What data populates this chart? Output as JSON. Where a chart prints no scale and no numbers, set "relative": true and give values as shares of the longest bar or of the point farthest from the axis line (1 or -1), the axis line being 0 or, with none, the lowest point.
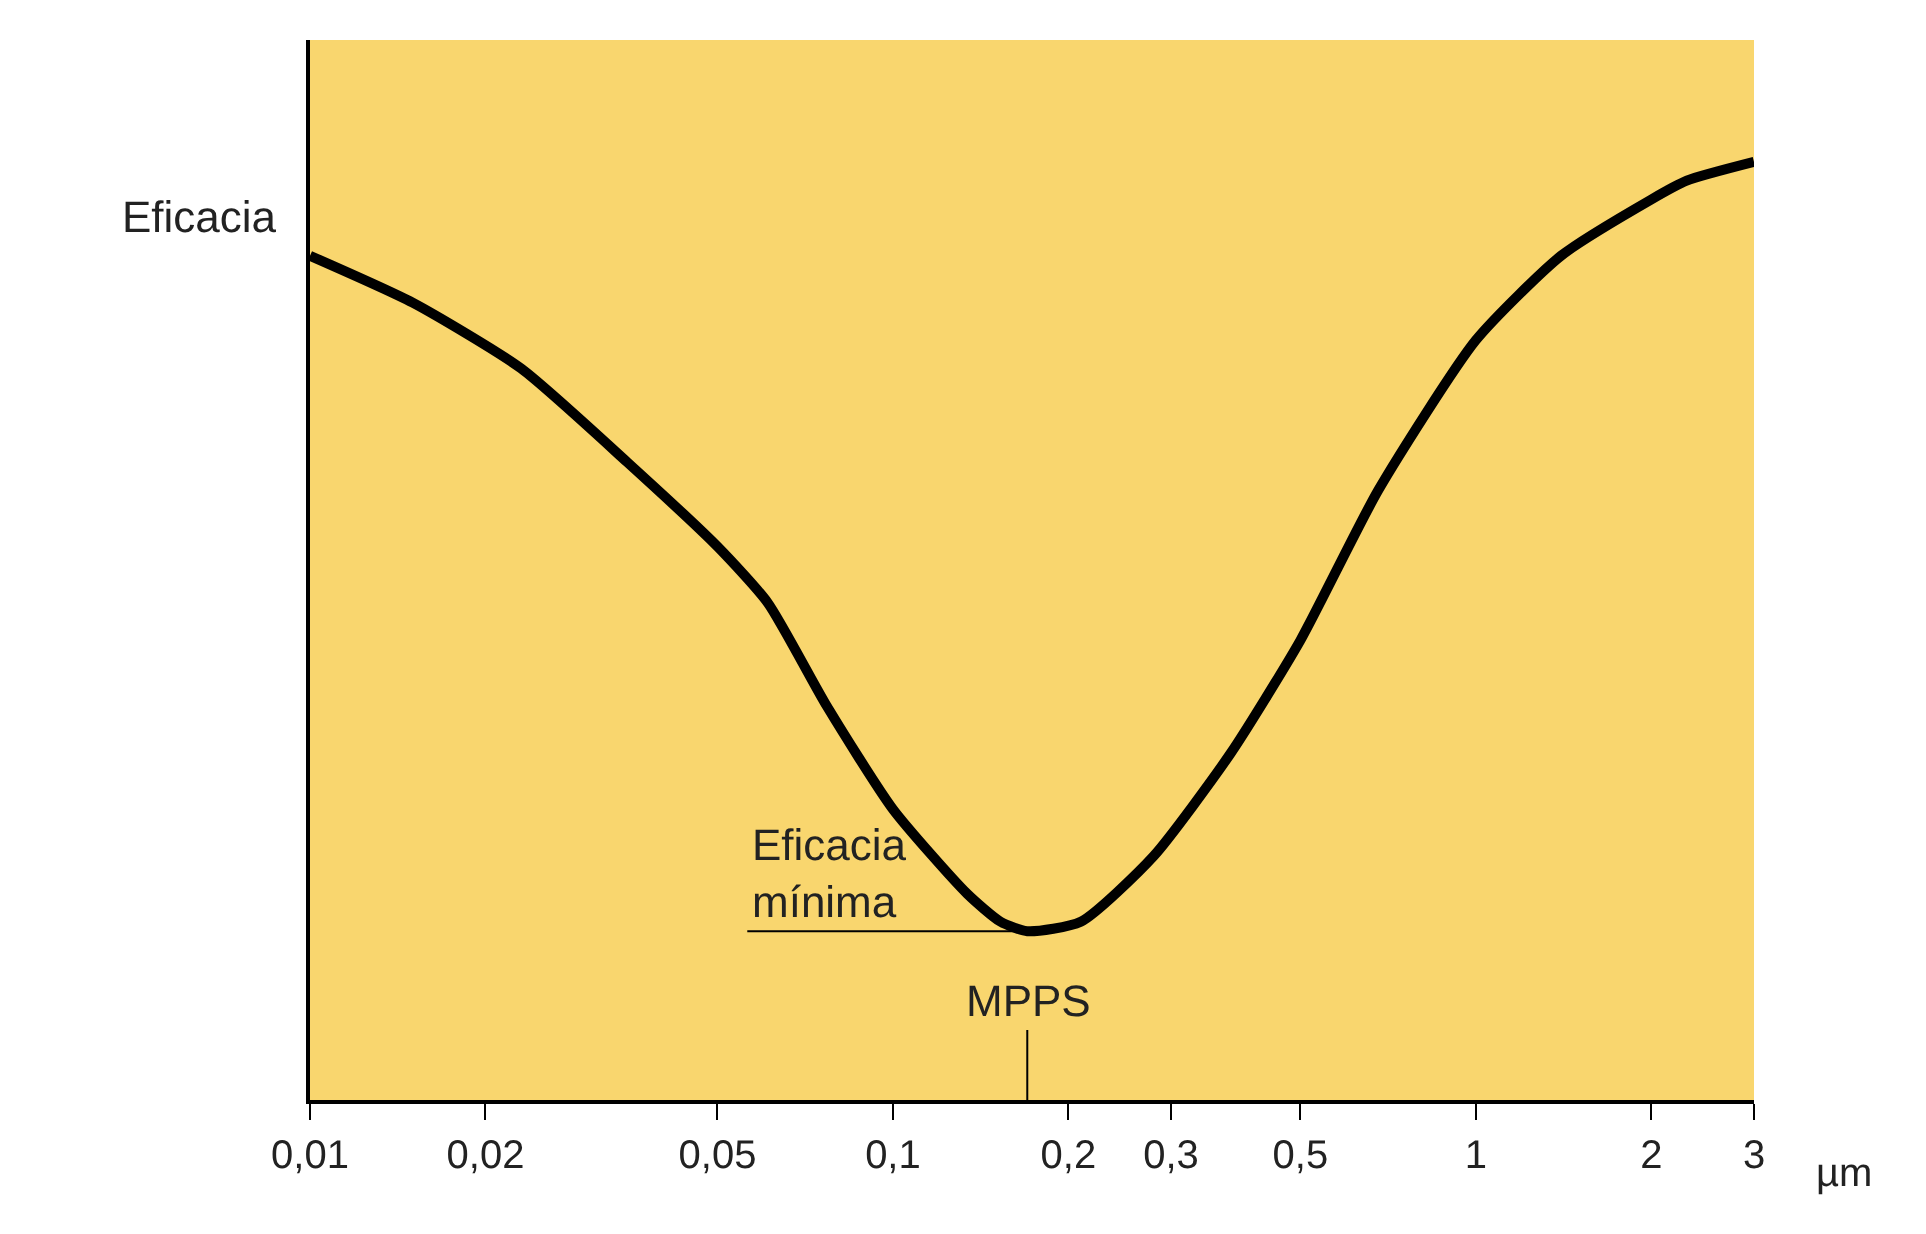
{
  "chart_data": {
    "type": "line",
    "relative": true,
    "log": "x",
    "ylabel": "Eficacia",
    "xlabel": "µm",
    "x": [
      0.01,
      0.015,
      0.023,
      0.035,
      0.05,
      0.061,
      0.077,
      0.1,
      0.134,
      0.153,
      0.17,
      0.21,
      0.28,
      0.38,
      0.5,
      0.68,
      1,
      1.4,
      2,
      2.3,
      3
    ],
    "series": [
      {
        "color": "#000000",
        "values": [
          0.9,
          0.85,
          0.78,
          0.68,
          0.59,
          0.53,
          0.42,
          0.31,
          0.22,
          0.19,
          0.18,
          0.19,
          0.26,
          0.37,
          0.49,
          0.65,
          0.81,
          0.9,
          0.96,
          0.98,
          1.0
        ]
      }
    ],
    "xlim": [
      0.01,
      3
    ],
    "xticks": [
      {
        "value": 0.01,
        "label": "0,01"
      },
      {
        "value": 0.02,
        "label": "0,02"
      },
      {
        "value": 0.05,
        "label": "0,05"
      },
      {
        "value": 0.1,
        "label": "0,1"
      },
      {
        "value": 0.2,
        "label": "0,2"
      },
      {
        "value": 0.3,
        "label": "0,3"
      },
      {
        "value": 0.5,
        "label": "0,5"
      },
      {
        "value": 1,
        "label": "1"
      },
      {
        "value": 2,
        "label": "2"
      },
      {
        "value": 3,
        "label": "3"
      }
    ],
    "annotations": [
      {
        "text": "Eficacia\nmínima",
        "x": 0.17,
        "y": 0.18
      },
      "MPPS"
    ],
    "grid": false,
    "marker": "none",
    "line_style": "solid"
  }
}
